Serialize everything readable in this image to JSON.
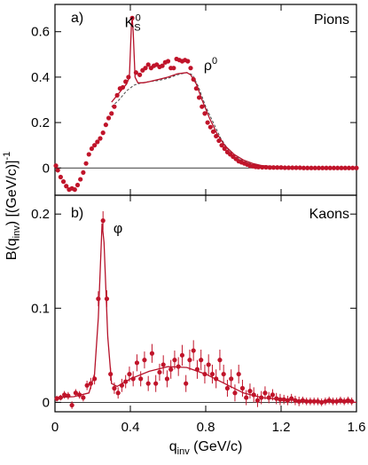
{
  "colors": {
    "data_points": "#c0142a",
    "fit_line": "#b5122a",
    "dashed_line": "#4a4a4a",
    "axis": "#000000"
  },
  "chart_data": {
    "type": "scatter",
    "xlabel": "q_inv (GeV/c)",
    "xlabel_parts": {
      "main": "q",
      "sub": "inv",
      "rest": " (GeV/c)"
    },
    "ylabel": "B(q_inv) [(GeV/c)]^-1",
    "ylabel_parts": {
      "pre": "B(q",
      "sub": "inv",
      "mid": ") [(GeV/c)]",
      "sup": "-1"
    },
    "xlim": [
      0,
      1.6
    ],
    "x_ticks": [
      0,
      0.4,
      0.8,
      1.2,
      1.6
    ],
    "x_tick_labels": [
      "0",
      "0.4",
      "0.8",
      "1.2",
      "1.6"
    ],
    "panels": [
      {
        "tag": "a)",
        "title": "Pions",
        "ylim": [
          -0.12,
          0.72
        ],
        "y_ticks": [
          0,
          0.2,
          0.4,
          0.6
        ],
        "y_tick_labels": [
          "0",
          "0.2",
          "0.4",
          "0.6"
        ],
        "annotations": [
          {
            "text": "K",
            "sub": "S",
            "sup": "0",
            "x": 0.37,
            "y": 0.62
          },
          {
            "text": "ρ",
            "sup": "0",
            "x": 0.79,
            "y": 0.43
          }
        ],
        "points": [
          [
            0.005,
            0.01
          ],
          [
            0.015,
            -0.01
          ],
          [
            0.03,
            -0.04
          ],
          [
            0.045,
            -0.06
          ],
          [
            0.06,
            -0.08
          ],
          [
            0.075,
            -0.095
          ],
          [
            0.09,
            -0.09
          ],
          [
            0.105,
            -0.095
          ],
          [
            0.12,
            -0.075
          ],
          [
            0.135,
            -0.05
          ],
          [
            0.15,
            -0.02
          ],
          [
            0.165,
            0.02
          ],
          [
            0.18,
            0.06
          ],
          [
            0.195,
            0.085
          ],
          [
            0.21,
            0.1
          ],
          [
            0.225,
            0.115
          ],
          [
            0.24,
            0.13
          ],
          [
            0.255,
            0.155
          ],
          [
            0.27,
            0.19
          ],
          [
            0.285,
            0.22
          ],
          [
            0.3,
            0.24
          ],
          [
            0.315,
            0.27
          ],
          [
            0.33,
            0.32
          ],
          [
            0.345,
            0.35
          ],
          [
            0.36,
            0.355
          ],
          [
            0.375,
            0.38
          ],
          [
            0.39,
            0.4
          ],
          [
            0.41,
            0.66
          ],
          [
            0.43,
            0.42
          ],
          [
            0.45,
            0.41
          ],
          [
            0.465,
            0.43
          ],
          [
            0.48,
            0.44
          ],
          [
            0.495,
            0.455
          ],
          [
            0.51,
            0.44
          ],
          [
            0.525,
            0.45
          ],
          [
            0.54,
            0.455
          ],
          [
            0.555,
            0.445
          ],
          [
            0.57,
            0.45
          ],
          [
            0.585,
            0.465
          ],
          [
            0.6,
            0.47
          ],
          [
            0.615,
            0.44
          ],
          [
            0.63,
            0.44
          ],
          [
            0.645,
            0.48
          ],
          [
            0.66,
            0.475
          ],
          [
            0.675,
            0.47
          ],
          [
            0.69,
            0.475
          ],
          [
            0.705,
            0.47
          ],
          [
            0.72,
            0.44
          ],
          [
            0.735,
            0.39
          ],
          [
            0.75,
            0.35
          ],
          [
            0.765,
            0.31
          ],
          [
            0.78,
            0.27
          ],
          [
            0.795,
            0.24
          ],
          [
            0.81,
            0.2
          ],
          [
            0.825,
            0.18
          ],
          [
            0.84,
            0.16
          ],
          [
            0.855,
            0.14
          ],
          [
            0.87,
            0.12
          ],
          [
            0.885,
            0.1
          ],
          [
            0.9,
            0.085
          ],
          [
            0.915,
            0.07
          ],
          [
            0.93,
            0.06
          ],
          [
            0.945,
            0.05
          ],
          [
            0.96,
            0.04
          ],
          [
            0.975,
            0.03
          ],
          [
            0.99,
            0.025
          ],
          [
            1.005,
            0.02
          ],
          [
            1.02,
            0.015
          ],
          [
            1.035,
            0.01
          ],
          [
            1.05,
            0.008
          ],
          [
            1.065,
            0.005
          ],
          [
            1.08,
            0.004
          ],
          [
            1.1,
            0.003
          ],
          [
            1.12,
            0.003
          ],
          [
            1.14,
            0.002
          ],
          [
            1.16,
            0.002
          ],
          [
            1.18,
            0.002
          ],
          [
            1.2,
            0.002
          ],
          [
            1.22,
            0.001
          ],
          [
            1.24,
            0.001
          ],
          [
            1.26,
            0.001
          ],
          [
            1.28,
            0.001
          ],
          [
            1.3,
            0.001
          ],
          [
            1.32,
            0.0
          ],
          [
            1.34,
            0.0
          ],
          [
            1.36,
            0.0
          ],
          [
            1.38,
            0.0
          ],
          [
            1.4,
            0.0
          ],
          [
            1.42,
            0.0
          ],
          [
            1.44,
            0.0
          ],
          [
            1.46,
            0.0
          ],
          [
            1.48,
            0.0
          ],
          [
            1.5,
            0.0
          ],
          [
            1.52,
            0.0
          ],
          [
            1.54,
            0.0
          ],
          [
            1.56,
            0.0
          ],
          [
            1.58,
            0.0
          ],
          [
            1.6,
            0.0
          ]
        ],
        "fit_curve": [
          [
            0.3,
            0.29
          ],
          [
            0.33,
            0.32
          ],
          [
            0.36,
            0.35
          ],
          [
            0.38,
            0.37
          ],
          [
            0.395,
            0.4
          ],
          [
            0.405,
            0.62
          ],
          [
            0.41,
            0.66
          ],
          [
            0.415,
            0.6
          ],
          [
            0.425,
            0.4
          ],
          [
            0.44,
            0.375
          ],
          [
            0.47,
            0.375
          ],
          [
            0.5,
            0.38
          ],
          [
            0.55,
            0.39
          ],
          [
            0.6,
            0.4
          ],
          [
            0.65,
            0.415
          ],
          [
            0.7,
            0.42
          ],
          [
            0.72,
            0.41
          ],
          [
            0.75,
            0.37
          ],
          [
            0.78,
            0.3
          ],
          [
            0.82,
            0.22
          ],
          [
            0.86,
            0.15
          ],
          [
            0.9,
            0.1
          ],
          [
            0.95,
            0.06
          ],
          [
            1.0,
            0.035
          ],
          [
            1.05,
            0.02
          ],
          [
            1.1,
            0.01
          ],
          [
            1.2,
            0.004
          ],
          [
            1.3,
            0.002
          ],
          [
            1.4,
            0.001
          ]
        ],
        "dashed_curve": [
          [
            0.3,
            0.27
          ],
          [
            0.34,
            0.3
          ],
          [
            0.38,
            0.34
          ],
          [
            0.42,
            0.365
          ],
          [
            0.46,
            0.375
          ],
          [
            0.5,
            0.38
          ],
          [
            0.55,
            0.385
          ],
          [
            0.6,
            0.395
          ],
          [
            0.65,
            0.41
          ],
          [
            0.7,
            0.42
          ],
          [
            0.73,
            0.41
          ],
          [
            0.76,
            0.36
          ],
          [
            0.8,
            0.27
          ],
          [
            0.84,
            0.2
          ],
          [
            0.88,
            0.13
          ],
          [
            0.92,
            0.08
          ],
          [
            0.96,
            0.05
          ],
          [
            1.0,
            0.03
          ],
          [
            1.05,
            0.015
          ],
          [
            1.1,
            0.008
          ],
          [
            1.2,
            0.003
          ]
        ]
      },
      {
        "tag": "b)",
        "title": "Kaons",
        "ylim": [
          -0.01,
          0.22
        ],
        "y_ticks": [
          0,
          0.1,
          0.2
        ],
        "y_tick_labels": [
          "0",
          "0.1",
          "0.2"
        ],
        "annotations": [
          {
            "text": "φ",
            "x": 0.31,
            "y": 0.18
          }
        ],
        "points": [
          [
            0.01,
            0.004,
            0.003
          ],
          [
            0.03,
            0.005,
            0.003
          ],
          [
            0.05,
            0.008,
            0.004
          ],
          [
            0.07,
            0.007,
            0.004
          ],
          [
            0.09,
            -0.003,
            0.004
          ],
          [
            0.11,
            0.01,
            0.004
          ],
          [
            0.13,
            0.008,
            0.004
          ],
          [
            0.15,
            0.005,
            0.004
          ],
          [
            0.17,
            0.018,
            0.005
          ],
          [
            0.19,
            0.02,
            0.006
          ],
          [
            0.21,
            0.025,
            0.006
          ],
          [
            0.23,
            0.11,
            0.008
          ],
          [
            0.255,
            0.193,
            0.01
          ],
          [
            0.275,
            0.11,
            0.009
          ],
          [
            0.295,
            0.03,
            0.007
          ],
          [
            0.315,
            0.015,
            0.006
          ],
          [
            0.335,
            0.01,
            0.006
          ],
          [
            0.355,
            0.018,
            0.007
          ],
          [
            0.375,
            0.022,
            0.007
          ],
          [
            0.395,
            0.03,
            0.008
          ],
          [
            0.415,
            0.025,
            0.008
          ],
          [
            0.435,
            0.042,
            0.009
          ],
          [
            0.455,
            0.025,
            0.008
          ],
          [
            0.475,
            0.045,
            0.009
          ],
          [
            0.495,
            0.02,
            0.008
          ],
          [
            0.515,
            0.052,
            0.01
          ],
          [
            0.535,
            0.02,
            0.009
          ],
          [
            0.555,
            0.032,
            0.009
          ],
          [
            0.575,
            0.04,
            0.01
          ],
          [
            0.595,
            0.025,
            0.009
          ],
          [
            0.615,
            0.035,
            0.01
          ],
          [
            0.635,
            0.045,
            0.01
          ],
          [
            0.655,
            0.038,
            0.01
          ],
          [
            0.675,
            0.05,
            0.011
          ],
          [
            0.695,
            0.02,
            0.009
          ],
          [
            0.715,
            0.045,
            0.011
          ],
          [
            0.735,
            0.055,
            0.011
          ],
          [
            0.755,
            0.035,
            0.01
          ],
          [
            0.775,
            0.045,
            0.011
          ],
          [
            0.795,
            0.03,
            0.01
          ],
          [
            0.815,
            0.04,
            0.011
          ],
          [
            0.835,
            0.03,
            0.01
          ],
          [
            0.855,
            0.025,
            0.01
          ],
          [
            0.875,
            0.045,
            0.011
          ],
          [
            0.895,
            0.03,
            0.01
          ],
          [
            0.915,
            0.015,
            0.009
          ],
          [
            0.935,
            0.025,
            0.01
          ],
          [
            0.955,
            0.01,
            0.009
          ],
          [
            0.975,
            0.03,
            0.01
          ],
          [
            0.995,
            0.015,
            0.009
          ],
          [
            1.015,
            0.005,
            0.008
          ],
          [
            1.035,
            0.012,
            0.008
          ],
          [
            1.055,
            0.008,
            0.008
          ],
          [
            1.075,
            0.002,
            0.007
          ],
          [
            1.095,
            0.005,
            0.007
          ],
          [
            1.115,
            0.01,
            0.007
          ],
          [
            1.135,
            0.005,
            0.006
          ],
          [
            1.155,
            0.008,
            0.006
          ],
          [
            1.175,
            0.004,
            0.006
          ],
          [
            1.195,
            0.003,
            0.006
          ],
          [
            1.215,
            0.003,
            0.005
          ],
          [
            1.235,
            0.002,
            0.005
          ],
          [
            1.255,
            0.004,
            0.005
          ],
          [
            1.275,
            0.002,
            0.005
          ],
          [
            1.295,
            0.001,
            0.005
          ],
          [
            1.315,
            0.002,
            0.004
          ],
          [
            1.335,
            0.001,
            0.004
          ],
          [
            1.355,
            0.001,
            0.004
          ],
          [
            1.375,
            0.001,
            0.004
          ],
          [
            1.395,
            0.001,
            0.004
          ],
          [
            1.415,
            0.0,
            0.004
          ],
          [
            1.435,
            0.001,
            0.004
          ],
          [
            1.455,
            0.002,
            0.004
          ],
          [
            1.475,
            0.001,
            0.004
          ],
          [
            1.495,
            0.001,
            0.004
          ],
          [
            1.515,
            0.002,
            0.004
          ],
          [
            1.535,
            0.001,
            0.004
          ],
          [
            1.555,
            0.002,
            0.004
          ],
          [
            1.575,
            0.001,
            0.004
          ]
        ],
        "fit_curve": [
          [
            0.0,
            0.005
          ],
          [
            0.1,
            0.006
          ],
          [
            0.18,
            0.01
          ],
          [
            0.21,
            0.03
          ],
          [
            0.23,
            0.09
          ],
          [
            0.25,
            0.19
          ],
          [
            0.26,
            0.17
          ],
          [
            0.28,
            0.07
          ],
          [
            0.3,
            0.02
          ],
          [
            0.33,
            0.017
          ],
          [
            0.4,
            0.025
          ],
          [
            0.5,
            0.033
          ],
          [
            0.6,
            0.038
          ],
          [
            0.7,
            0.037
          ],
          [
            0.8,
            0.03
          ],
          [
            0.9,
            0.02
          ],
          [
            1.0,
            0.01
          ],
          [
            1.1,
            0.005
          ],
          [
            1.2,
            0.003
          ],
          [
            1.4,
            0.001
          ],
          [
            1.6,
            0.0
          ]
        ]
      }
    ]
  }
}
